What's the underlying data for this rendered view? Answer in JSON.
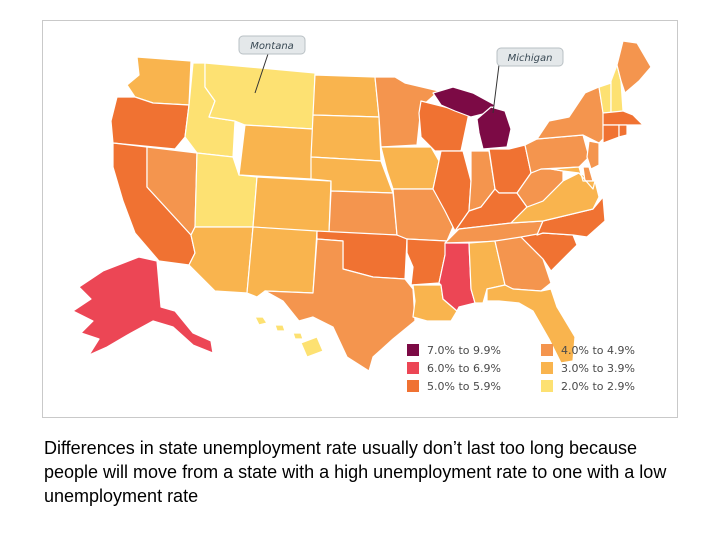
{
  "callouts": [
    {
      "label": "Montana",
      "state": "MT"
    },
    {
      "label": "Michigan",
      "state": "MI"
    }
  ],
  "legend": [
    {
      "label": "7.0% to 9.9%",
      "color": "#7c0a45"
    },
    {
      "label": "6.0% to 6.9%",
      "color": "#ec4655"
    },
    {
      "label": "5.0% to 5.9%",
      "color": "#f07232"
    },
    {
      "label": "4.0% to 4.9%",
      "color": "#f4954e"
    },
    {
      "label": "3.0% to 3.9%",
      "color": "#f9b44e"
    },
    {
      "label": "2.0% to 2.9%",
      "color": "#fde172"
    }
  ],
  "states": {
    "WA": 4,
    "OR": 2,
    "CA": 2,
    "NV": 3,
    "ID": 5,
    "MT": 5,
    "WY": 4,
    "UT": 5,
    "AZ": 4,
    "CO": 4,
    "NM": 4,
    "ND": 4,
    "SD": 4,
    "NE": 4,
    "KS": 3,
    "OK": 2,
    "TX": 3,
    "MN": 3,
    "IA": 4,
    "MO": 3,
    "AR": 2,
    "LA": 4,
    "WI": 2,
    "IL": 2,
    "MI": 0,
    "IN": 3,
    "OH": 2,
    "KY": 2,
    "TN": 3,
    "MS": 1,
    "AL": 4,
    "GA": 3,
    "FL": 4,
    "SC": 2,
    "NC": 2,
    "VA": 4,
    "WV": 3,
    "PA": 3,
    "NY": 3,
    "VT": 5,
    "NH": 5,
    "ME": 3,
    "MA": 2,
    "CT": 2,
    "RI": 2,
    "NJ": 3,
    "DE": 3,
    "MD": 4,
    "AK": 1,
    "HI": 5
  },
  "caption": "Differences in state unemployment rate usually don’t last too long because people will move from a state with a high unemployment rate to one with a low unemployment rate"
}
